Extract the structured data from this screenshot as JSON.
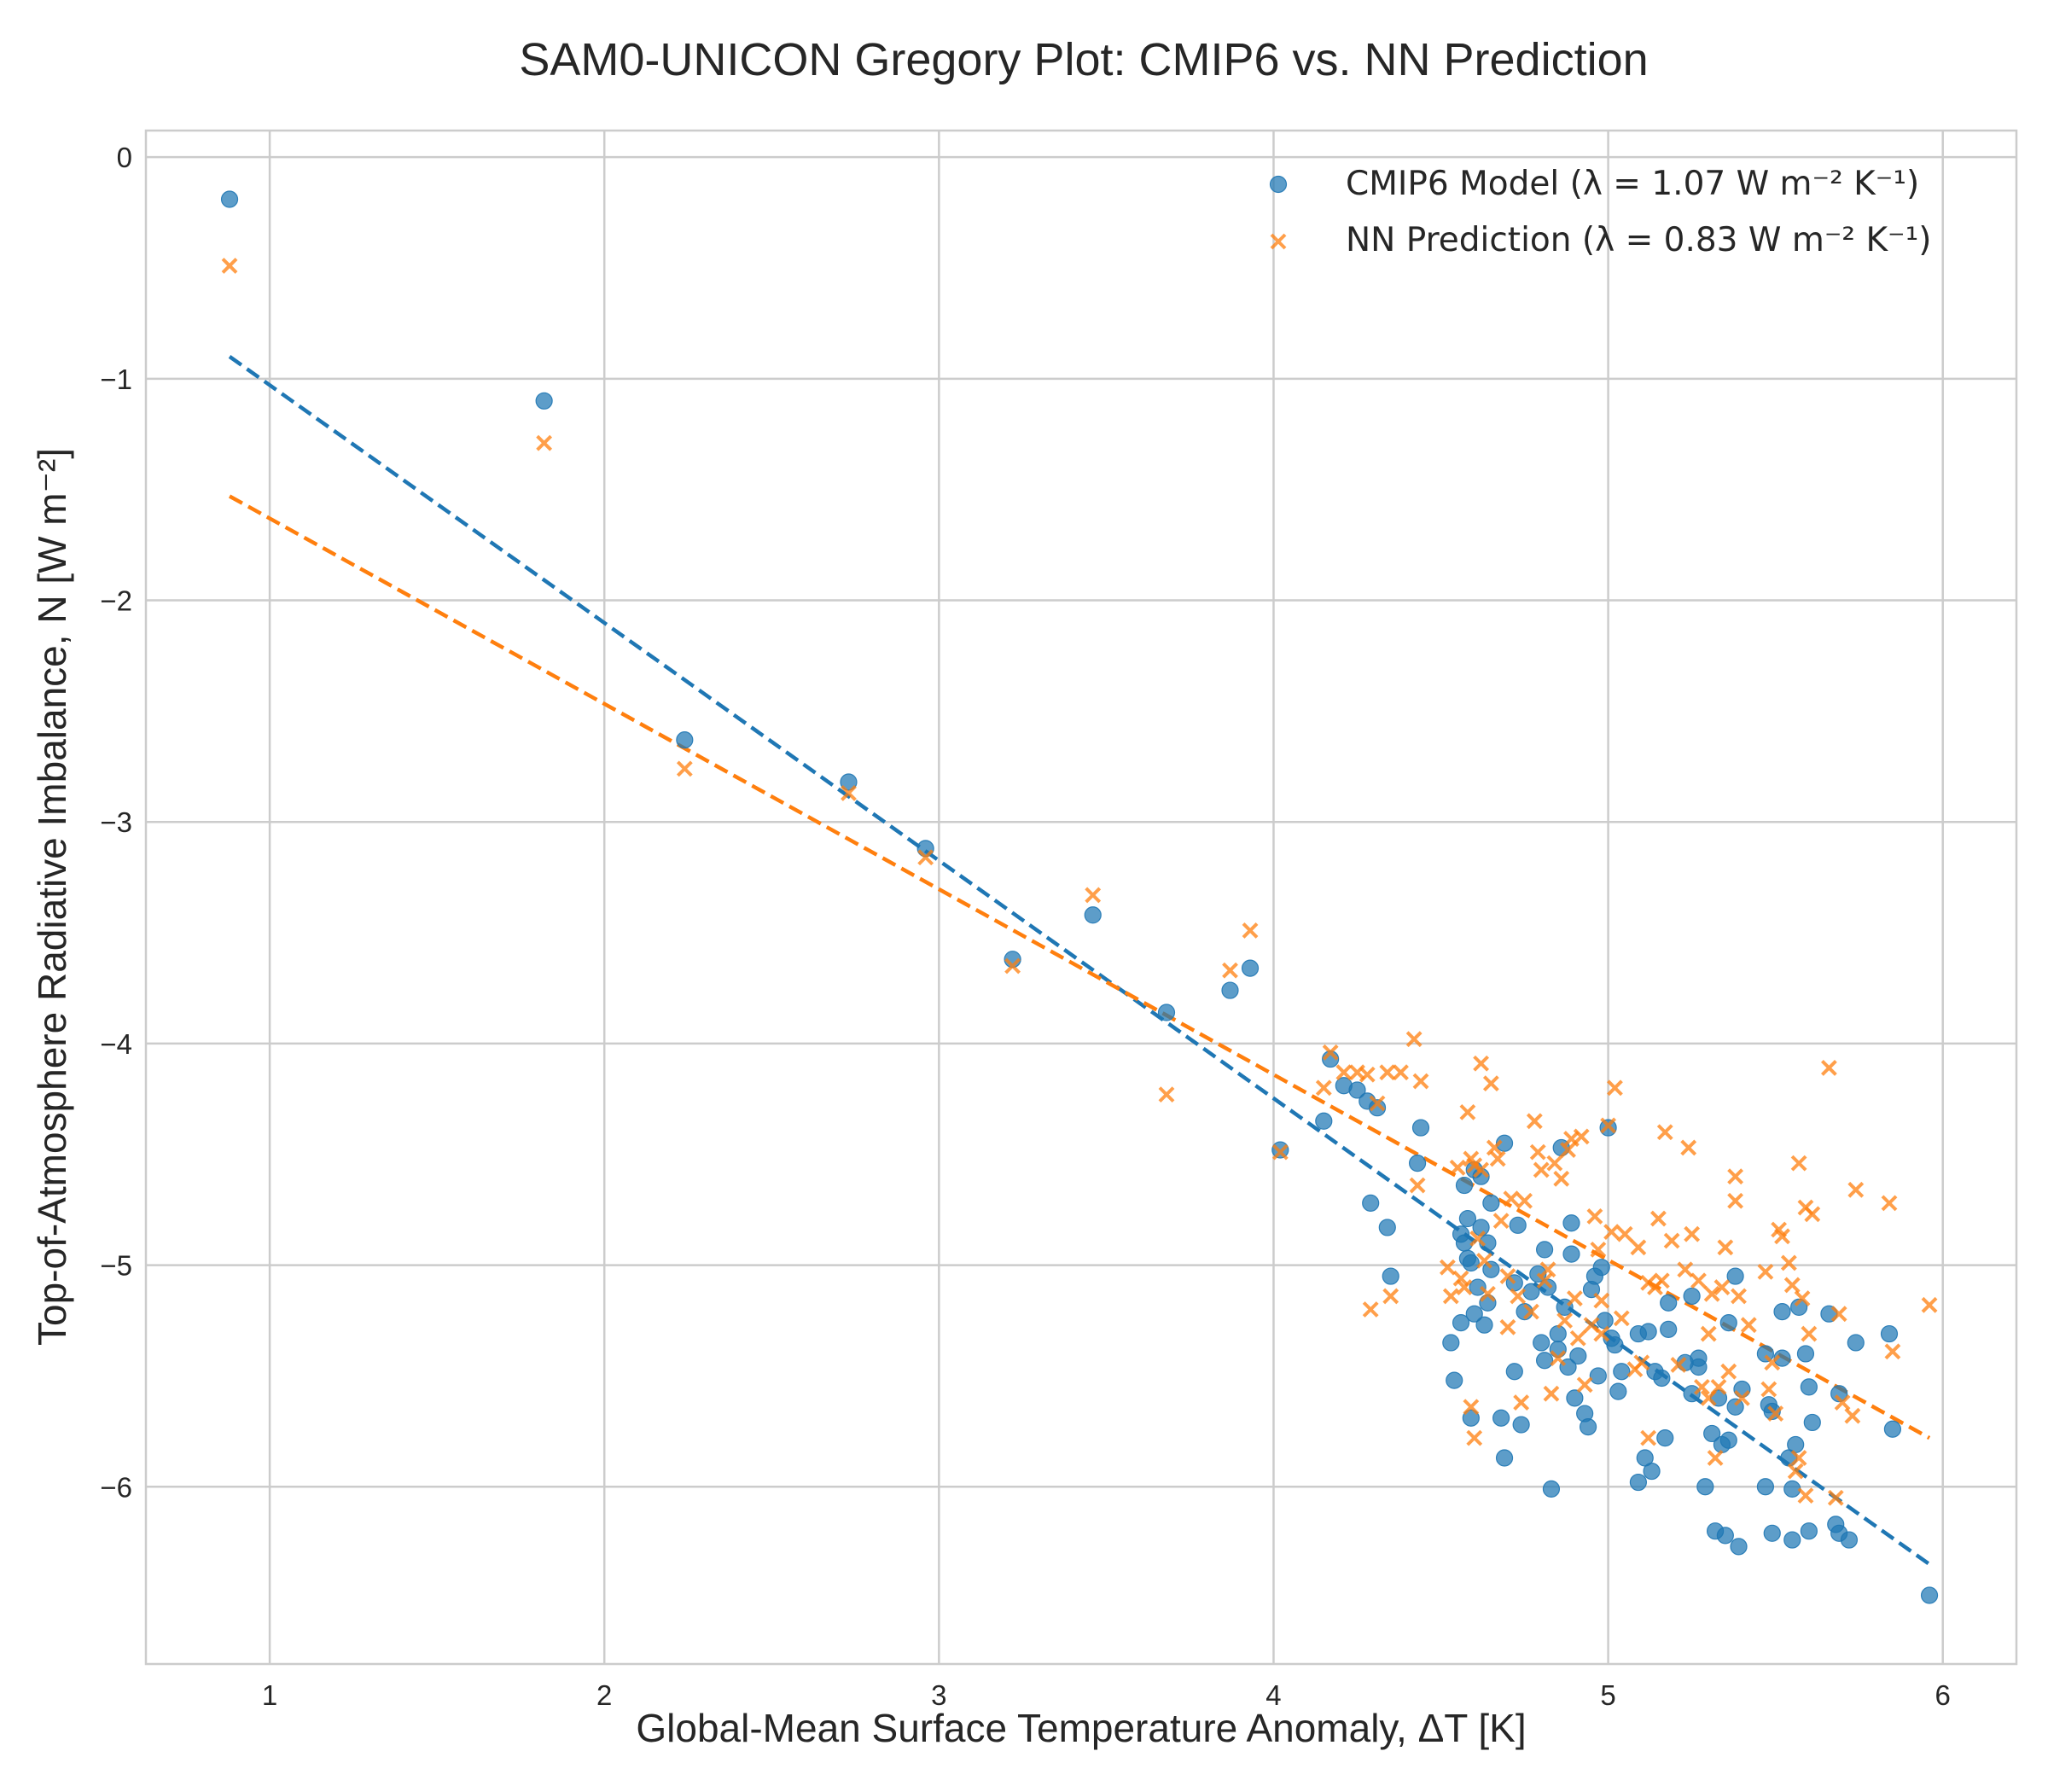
{
  "chart_data": {
    "type": "scatter",
    "title": "SAM0-UNICON Gregory Plot: CMIP6 vs. NN Prediction",
    "xlabel": "Global-Mean Surface Temperature Anomaly, ΔT [K]",
    "ylabel": "Top-of-Atmosphere Radiative Imbalance, N [W m⁻²]",
    "xlim": [
      0.63,
      6.22
    ],
    "ylim": [
      -6.8,
      0.12
    ],
    "xticks": [
      1,
      2,
      3,
      4,
      5,
      6
    ],
    "yticks": [
      0,
      -1,
      -2,
      -3,
      -4,
      -5,
      -6
    ],
    "xtick_labels": [
      "1",
      "2",
      "3",
      "4",
      "5",
      "6"
    ],
    "ytick_labels": [
      "0",
      "−1",
      "−2",
      "−3",
      "−4",
      "−5",
      "−6"
    ],
    "grid": true,
    "legend_position": "top-right",
    "series": [
      {
        "name": "CMIP6 Model (λ = 1.07 W m⁻² K⁻¹)",
        "marker": "circle",
        "color": "#1f77b4",
        "fit": {
          "x": [
            0.88,
            5.96
          ],
          "y": [
            -0.9,
            -6.35
          ]
        },
        "points": [
          [
            0.88,
            -0.19
          ],
          [
            1.82,
            -1.1
          ],
          [
            2.24,
            -2.63
          ],
          [
            2.73,
            -2.82
          ],
          [
            2.96,
            -3.12
          ],
          [
            3.22,
            -3.62
          ],
          [
            3.46,
            -3.42
          ],
          [
            3.68,
            -3.86
          ],
          [
            3.87,
            -3.76
          ],
          [
            3.93,
            -3.66
          ],
          [
            4.02,
            -4.48
          ],
          [
            4.15,
            -4.35
          ],
          [
            4.17,
            -4.07
          ],
          [
            4.21,
            -4.19
          ],
          [
            4.25,
            -4.21
          ],
          [
            4.28,
            -4.26
          ],
          [
            4.29,
            -4.72
          ],
          [
            4.31,
            -4.29
          ],
          [
            4.34,
            -4.83
          ],
          [
            4.35,
            -5.05
          ],
          [
            4.43,
            -4.54
          ],
          [
            4.44,
            -4.38
          ],
          [
            4.53,
            -5.35
          ],
          [
            4.54,
            -5.52
          ],
          [
            4.56,
            -4.86
          ],
          [
            4.56,
            -5.26
          ],
          [
            4.57,
            -4.9
          ],
          [
            4.57,
            -4.64
          ],
          [
            4.58,
            -4.79
          ],
          [
            4.58,
            -4.97
          ],
          [
            4.59,
            -5.69
          ],
          [
            4.6,
            -4.57
          ],
          [
            4.6,
            -5.22
          ],
          [
            4.61,
            -5.1
          ],
          [
            4.62,
            -4.83
          ],
          [
            4.62,
            -4.6
          ],
          [
            4.63,
            -5.27
          ],
          [
            4.64,
            -5.17
          ],
          [
            4.64,
            -4.9
          ],
          [
            4.65,
            -5.02
          ],
          [
            4.65,
            -4.72
          ],
          [
            4.68,
            -5.69
          ],
          [
            4.69,
            -5.87
          ],
          [
            4.69,
            -4.45
          ],
          [
            4.72,
            -5.48
          ],
          [
            4.73,
            -4.82
          ],
          [
            4.74,
            -5.72
          ],
          [
            4.75,
            -5.21
          ],
          [
            4.77,
            -5.12
          ],
          [
            4.79,
            -5.04
          ],
          [
            4.8,
            -5.35
          ],
          [
            4.81,
            -5.43
          ],
          [
            4.81,
            -4.93
          ],
          [
            4.82,
            -5.1
          ],
          [
            4.83,
            -6.01
          ],
          [
            4.85,
            -5.38
          ],
          [
            4.85,
            -5.31
          ],
          [
            4.86,
            -4.47
          ],
          [
            4.87,
            -5.19
          ],
          [
            4.88,
            -5.46
          ],
          [
            4.89,
            -4.81
          ],
          [
            4.89,
            -4.95
          ],
          [
            4.9,
            -5.6
          ],
          [
            4.91,
            -5.41
          ],
          [
            4.93,
            -5.67
          ],
          [
            4.94,
            -5.73
          ],
          [
            4.95,
            -5.11
          ],
          [
            4.97,
            -5.5
          ],
          [
            4.98,
            -5.01
          ],
          [
            4.99,
            -5.25
          ],
          [
            5.0,
            -4.38
          ],
          [
            5.01,
            -5.33
          ],
          [
            5.02,
            -5.36
          ],
          [
            5.03,
            -5.57
          ],
          [
            5.04,
            -5.48
          ],
          [
            5.09,
            -5.98
          ],
          [
            5.09,
            -5.31
          ],
          [
            5.11,
            -5.87
          ],
          [
            5.13,
            -5.93
          ],
          [
            5.14,
            -5.48
          ],
          [
            5.16,
            -5.51
          ],
          [
            5.17,
            -5.78
          ],
          [
            5.18,
            -5.17
          ],
          [
            5.18,
            -5.29
          ],
          [
            5.23,
            -5.44
          ],
          [
            5.25,
            -5.14
          ],
          [
            5.25,
            -5.58
          ],
          [
            5.27,
            -5.46
          ],
          [
            5.27,
            -5.42
          ],
          [
            5.29,
            -6.0
          ],
          [
            5.31,
            -5.76
          ],
          [
            5.32,
            -6.2
          ],
          [
            5.33,
            -5.6
          ],
          [
            5.34,
            -5.81
          ],
          [
            5.35,
            -6.22
          ],
          [
            5.36,
            -5.79
          ],
          [
            5.36,
            -5.26
          ],
          [
            5.38,
            -5.05
          ],
          [
            5.38,
            -5.64
          ],
          [
            5.39,
            -6.27
          ],
          [
            5.47,
            -6.0
          ],
          [
            5.48,
            -5.63
          ],
          [
            5.49,
            -6.21
          ],
          [
            5.49,
            -5.66
          ],
          [
            5.52,
            -5.42
          ],
          [
            5.52,
            -5.21
          ],
          [
            5.54,
            -5.87
          ],
          [
            5.55,
            -6.01
          ],
          [
            5.55,
            -6.24
          ],
          [
            5.56,
            -5.81
          ],
          [
            5.57,
            -5.19
          ],
          [
            5.59,
            -5.4
          ],
          [
            5.6,
            -5.55
          ],
          [
            5.6,
            -6.2
          ],
          [
            5.61,
            -5.71
          ],
          [
            5.66,
            -5.22
          ],
          [
            5.68,
            -6.17
          ],
          [
            5.69,
            -5.58
          ],
          [
            5.69,
            -6.21
          ],
          [
            5.72,
            -6.24
          ],
          [
            5.74,
            -5.35
          ],
          [
            5.84,
            -5.31
          ],
          [
            5.85,
            -5.74
          ],
          [
            5.96,
            -6.49
          ],
          [
            5.47,
            -5.4
          ],
          [
            5.12,
            -5.3
          ],
          [
            4.96,
            -5.05
          ],
          [
            4.72,
            -5.08
          ],
          [
            4.59,
            -4.99
          ],
          [
            5.4,
            -5.56
          ]
        ]
      },
      {
        "name": "NN Prediction (λ = 0.83 W m⁻² K⁻¹)",
        "marker": "x",
        "color": "#ff7f0e",
        "fit": {
          "x": [
            0.88,
            5.96
          ],
          "y": [
            -1.53,
            -5.78
          ]
        },
        "points": [
          [
            0.88,
            -0.49
          ],
          [
            1.82,
            -1.29
          ],
          [
            2.24,
            -2.76
          ],
          [
            2.73,
            -2.87
          ],
          [
            2.96,
            -3.16
          ],
          [
            3.22,
            -3.65
          ],
          [
            3.46,
            -3.33
          ],
          [
            3.68,
            -4.23
          ],
          [
            3.87,
            -3.67
          ],
          [
            3.93,
            -3.49
          ],
          [
            4.02,
            -4.49
          ],
          [
            4.15,
            -4.2
          ],
          [
            4.17,
            -4.04
          ],
          [
            4.21,
            -4.13
          ],
          [
            4.25,
            -4.13
          ],
          [
            4.28,
            -4.14
          ],
          [
            4.29,
            -5.2
          ],
          [
            4.31,
            -4.27
          ],
          [
            4.34,
            -4.13
          ],
          [
            4.35,
            -5.14
          ],
          [
            4.38,
            -4.13
          ],
          [
            4.42,
            -3.98
          ],
          [
            4.43,
            -4.64
          ],
          [
            4.44,
            -4.17
          ],
          [
            4.52,
            -5.01
          ],
          [
            4.53,
            -5.14
          ],
          [
            4.55,
            -4.56
          ],
          [
            4.56,
            -5.06
          ],
          [
            4.57,
            -5.1
          ],
          [
            4.58,
            -4.31
          ],
          [
            4.59,
            -4.52
          ],
          [
            4.59,
            -5.64
          ],
          [
            4.6,
            -5.78
          ],
          [
            4.6,
            -4.55
          ],
          [
            4.61,
            -4.88
          ],
          [
            4.62,
            -4.57
          ],
          [
            4.62,
            -4.09
          ],
          [
            4.63,
            -4.98
          ],
          [
            4.64,
            -5.13
          ],
          [
            4.65,
            -4.18
          ],
          [
            4.66,
            -4.47
          ],
          [
            4.67,
            -4.52
          ],
          [
            4.68,
            -4.8
          ],
          [
            4.7,
            -5.05
          ],
          [
            4.71,
            -4.7
          ],
          [
            4.73,
            -5.14
          ],
          [
            4.74,
            -5.62
          ],
          [
            4.75,
            -4.71
          ],
          [
            4.77,
            -5.21
          ],
          [
            4.78,
            -4.35
          ],
          [
            4.79,
            -4.49
          ],
          [
            4.8,
            -4.57
          ],
          [
            4.81,
            -5.07
          ],
          [
            4.82,
            -5.02
          ],
          [
            4.83,
            -5.58
          ],
          [
            4.84,
            -4.54
          ],
          [
            4.85,
            -5.42
          ],
          [
            4.86,
            -4.61
          ],
          [
            4.87,
            -5.25
          ],
          [
            4.88,
            -4.48
          ],
          [
            4.89,
            -4.43
          ],
          [
            4.9,
            -5.15
          ],
          [
            4.91,
            -5.33
          ],
          [
            4.92,
            -4.42
          ],
          [
            4.93,
            -5.54
          ],
          [
            4.95,
            -5.27
          ],
          [
            4.96,
            -4.78
          ],
          [
            4.97,
            -4.93
          ],
          [
            4.98,
            -5.16
          ],
          [
            5.0,
            -4.37
          ],
          [
            5.01,
            -4.85
          ],
          [
            5.02,
            -4.2
          ],
          [
            5.04,
            -5.24
          ],
          [
            5.05,
            -4.86
          ],
          [
            5.09,
            -4.92
          ],
          [
            5.1,
            -5.44
          ],
          [
            5.12,
            -5.78
          ],
          [
            5.14,
            -5.1
          ],
          [
            5.15,
            -4.79
          ],
          [
            5.16,
            -5.07
          ],
          [
            5.17,
            -4.4
          ],
          [
            5.19,
            -4.89
          ],
          [
            5.21,
            -5.45
          ],
          [
            5.23,
            -5.02
          ],
          [
            5.24,
            -4.47
          ],
          [
            5.25,
            -4.86
          ],
          [
            5.27,
            -5.07
          ],
          [
            5.28,
            -5.55
          ],
          [
            5.3,
            -5.31
          ],
          [
            5.31,
            -5.13
          ],
          [
            5.32,
            -5.87
          ],
          [
            5.33,
            -5.55
          ],
          [
            5.34,
            -5.1
          ],
          [
            5.35,
            -4.92
          ],
          [
            5.36,
            -5.48
          ],
          [
            5.38,
            -4.6
          ],
          [
            5.38,
            -4.71
          ],
          [
            5.39,
            -5.14
          ],
          [
            5.4,
            -5.6
          ],
          [
            5.47,
            -5.03
          ],
          [
            5.48,
            -5.56
          ],
          [
            5.49,
            -5.44
          ],
          [
            5.5,
            -5.67
          ],
          [
            5.51,
            -4.84
          ],
          [
            5.52,
            -4.87
          ],
          [
            5.54,
            -4.99
          ],
          [
            5.55,
            -5.09
          ],
          [
            5.56,
            -5.93
          ],
          [
            5.57,
            -4.54
          ],
          [
            5.57,
            -5.87
          ],
          [
            5.58,
            -5.15
          ],
          [
            5.59,
            -6.04
          ],
          [
            5.59,
            -4.74
          ],
          [
            5.6,
            -5.31
          ],
          [
            5.61,
            -4.77
          ],
          [
            5.66,
            -4.11
          ],
          [
            5.68,
            -6.05
          ],
          [
            5.69,
            -5.22
          ],
          [
            5.7,
            -5.62
          ],
          [
            5.73,
            -5.68
          ],
          [
            5.74,
            -4.66
          ],
          [
            5.84,
            -4.72
          ],
          [
            5.85,
            -5.39
          ],
          [
            5.96,
            -5.18
          ],
          [
            5.12,
            -5.08
          ],
          [
            4.98,
            -5.31
          ],
          [
            5.42,
            -5.27
          ],
          [
            5.08,
            -5.47
          ],
          [
            4.7,
            -5.28
          ],
          [
            5.3,
            -5.6
          ]
        ]
      }
    ]
  }
}
